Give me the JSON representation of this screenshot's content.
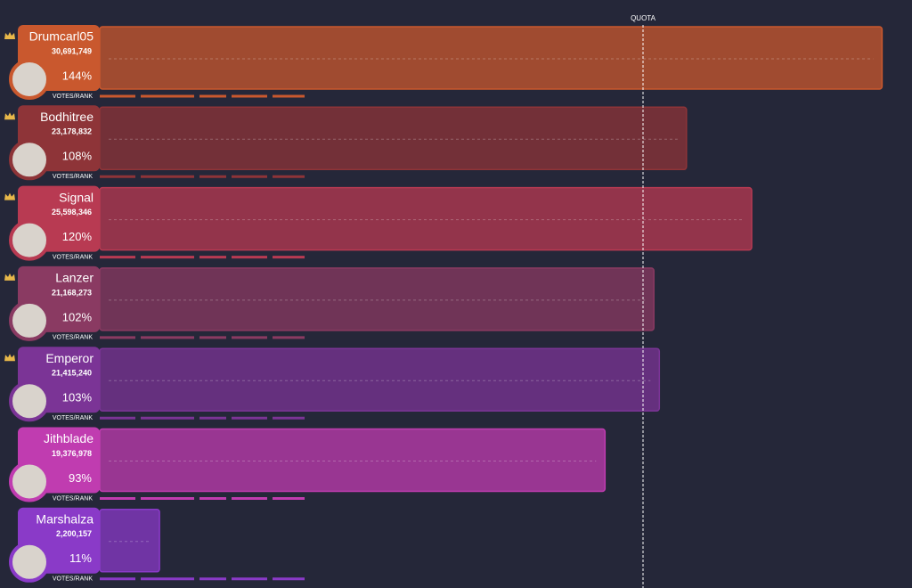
{
  "chart_data": {
    "type": "bar",
    "categories": [
      "Drumcarl05",
      "Bodhitree",
      "Signal",
      "Lanzer",
      "Emperor",
      "Jithblade",
      "Marshalza"
    ],
    "votes": [
      "30,691,749",
      "23,178,832",
      "25,598,346",
      "21,168,273",
      "21,415,240",
      "19,376,978",
      "2,200,157"
    ],
    "values": [
      144,
      108,
      120,
      102,
      103,
      93,
      11
    ],
    "value_labels": [
      "144%",
      "108%",
      "120%",
      "102%",
      "103%",
      "93%",
      "11%"
    ],
    "colors": [
      "#c9582e",
      "#8e3438",
      "#b83a52",
      "#8a3a62",
      "#7b3496",
      "#c03cb0",
      "#8a3ac8"
    ],
    "rank_label": "VOTES/RANK",
    "quota": {
      "value": 100,
      "label": "QUOTA"
    }
  }
}
